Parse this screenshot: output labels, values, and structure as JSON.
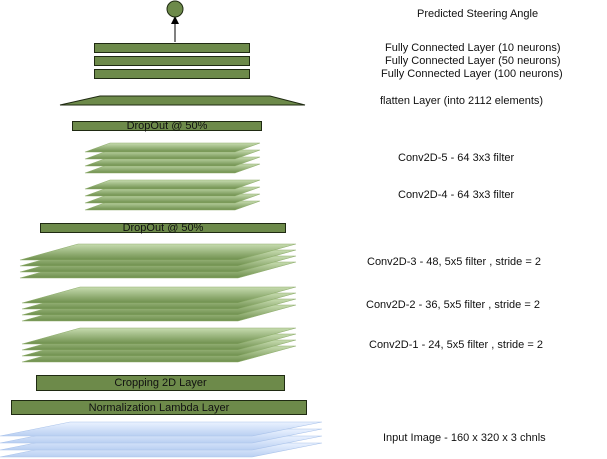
{
  "output": {
    "label": "Predicted Steering Angle"
  },
  "fc": {
    "labels": [
      "Fully Connected Layer (10 neurons)",
      "Fully Connected Layer (50 neurons)",
      "Fully Connected Layer (100 neurons)"
    ]
  },
  "flatten": {
    "label": "flatten Layer (into 2112  elements)"
  },
  "dropout_top": {
    "label": "DropOut @ 50%"
  },
  "conv5": {
    "label": "Conv2D-5 - 64  3x3  filter"
  },
  "conv4": {
    "label": "Conv2D-4 - 64  3x3  filter"
  },
  "dropout_mid": {
    "label": "DropOut @ 50%"
  },
  "conv3": {
    "label": "Conv2D-3 - 48,  5x5  filter , stride = 2"
  },
  "conv2": {
    "label": "Conv2D-2 - 36,  5x5  filter , stride = 2"
  },
  "conv1": {
    "label": "Conv2D-1 - 24,  5x5  filter , stride = 2"
  },
  "cropping": {
    "label": "Cropping 2D Layer"
  },
  "normalization": {
    "label": "Normalization Lambda Layer"
  },
  "input": {
    "label": "Input Image - 160 x 320 x 3 chnls"
  },
  "colors": {
    "block_fill": "#6d8a4a",
    "block_border": "#1f2a12",
    "conv_top": "#c7dcb0",
    "conv_bottom": "#6e8f4c",
    "input_top": "#eaf2ff",
    "input_bottom": "#b9cff2",
    "output_node": "#6d8a4a"
  }
}
